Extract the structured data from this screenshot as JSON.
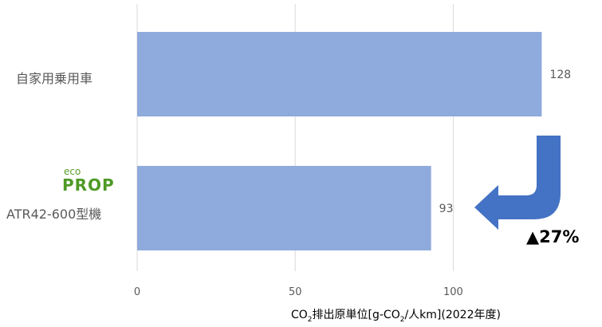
{
  "chart_data": {
    "type": "bar",
    "orientation": "horizontal",
    "categories": [
      "自家用乗用車",
      "ATR42-600型機"
    ],
    "values": [
      128,
      93
    ],
    "xlim": [
      0,
      140
    ],
    "xticks": [
      0,
      50,
      100
    ],
    "grid": true,
    "xlabel": {
      "prefix": "CO",
      "sub1": "2",
      "middle": "排出原単位[g-CO",
      "sub2": "2",
      "suffix": "/人km](2022年度)"
    },
    "annotation": "▲27%",
    "bar_color": "#8faadc",
    "arrow_color": "#4472c4"
  },
  "logo": {
    "eco": "eco",
    "prop": "PROP"
  }
}
